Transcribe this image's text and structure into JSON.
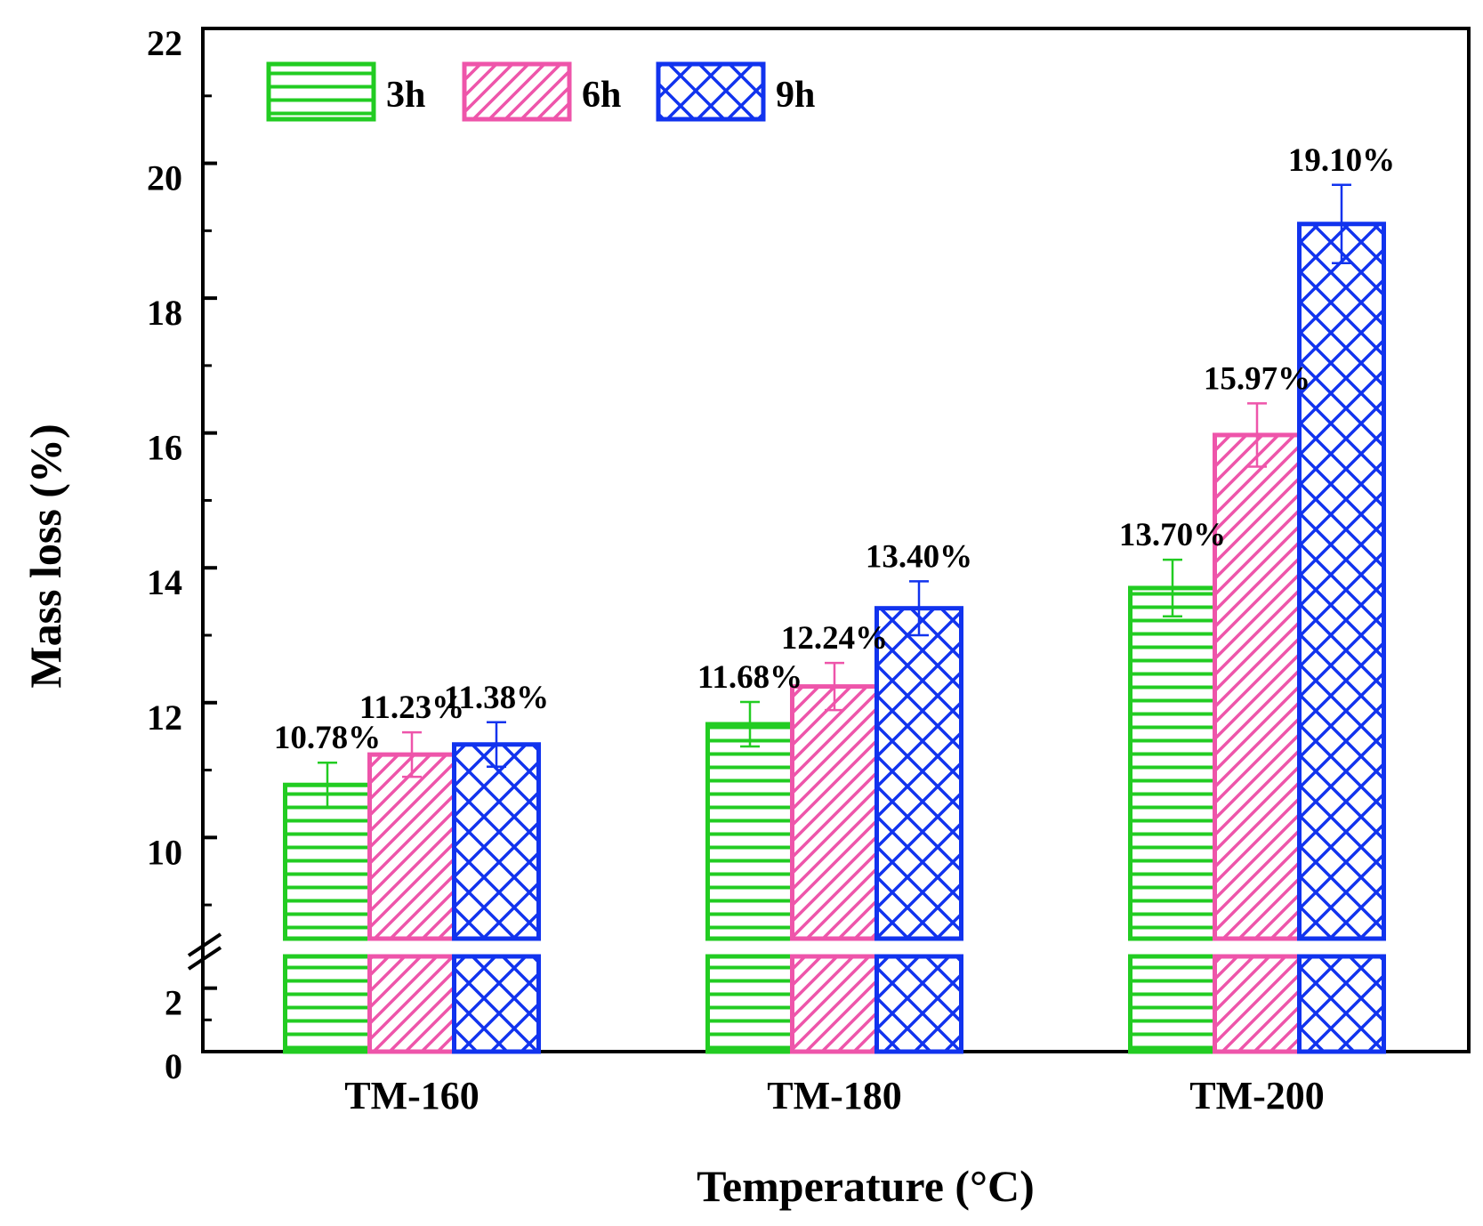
{
  "chart_data": {
    "type": "bar",
    "title": "",
    "xlabel": "Temperature (°C)",
    "ylabel": "Mass loss (%)",
    "categories": [
      "TM-160",
      "TM-180",
      "TM-200"
    ],
    "series": [
      {
        "name": "3h",
        "color": "#22cc22",
        "pattern": "horizontal-lines",
        "values": [
          10.78,
          11.68,
          13.7
        ],
        "errors": [
          0.33,
          0.33,
          0.42
        ],
        "labels": [
          "10.78%",
          "11.68%",
          "13.70%"
        ]
      },
      {
        "name": "6h",
        "color": "#ee55aa",
        "pattern": "diagonal-hatch",
        "values": [
          11.23,
          12.24,
          15.97
        ],
        "errors": [
          0.33,
          0.35,
          0.47
        ],
        "labels": [
          "11.23%",
          "12.24%",
          "15.97%"
        ]
      },
      {
        "name": "9h",
        "color": "#1133ee",
        "pattern": "crosshatch",
        "values": [
          11.38,
          13.4,
          19.1
        ],
        "errors": [
          0.33,
          0.4,
          0.58
        ],
        "labels": [
          "11.38%",
          "13.40%",
          "19.10%"
        ]
      }
    ],
    "axis_break": {
      "lower_range": [
        0,
        3
      ],
      "upper_range": [
        8.5,
        22
      ]
    },
    "yticks_lower": [
      {
        "value": 0,
        "label": "0"
      },
      {
        "value": 2,
        "label": "2"
      }
    ],
    "yticks_upper": [
      {
        "value": 10,
        "label": "10"
      },
      {
        "value": 12,
        "label": "12"
      },
      {
        "value": 14,
        "label": "14"
      },
      {
        "value": 16,
        "label": "16"
      },
      {
        "value": 18,
        "label": "18"
      },
      {
        "value": 20,
        "label": "20"
      },
      {
        "value": 22,
        "label": "22"
      }
    ],
    "ylim": [
      0,
      22
    ],
    "legend_position": "top-left",
    "grid": false
  }
}
